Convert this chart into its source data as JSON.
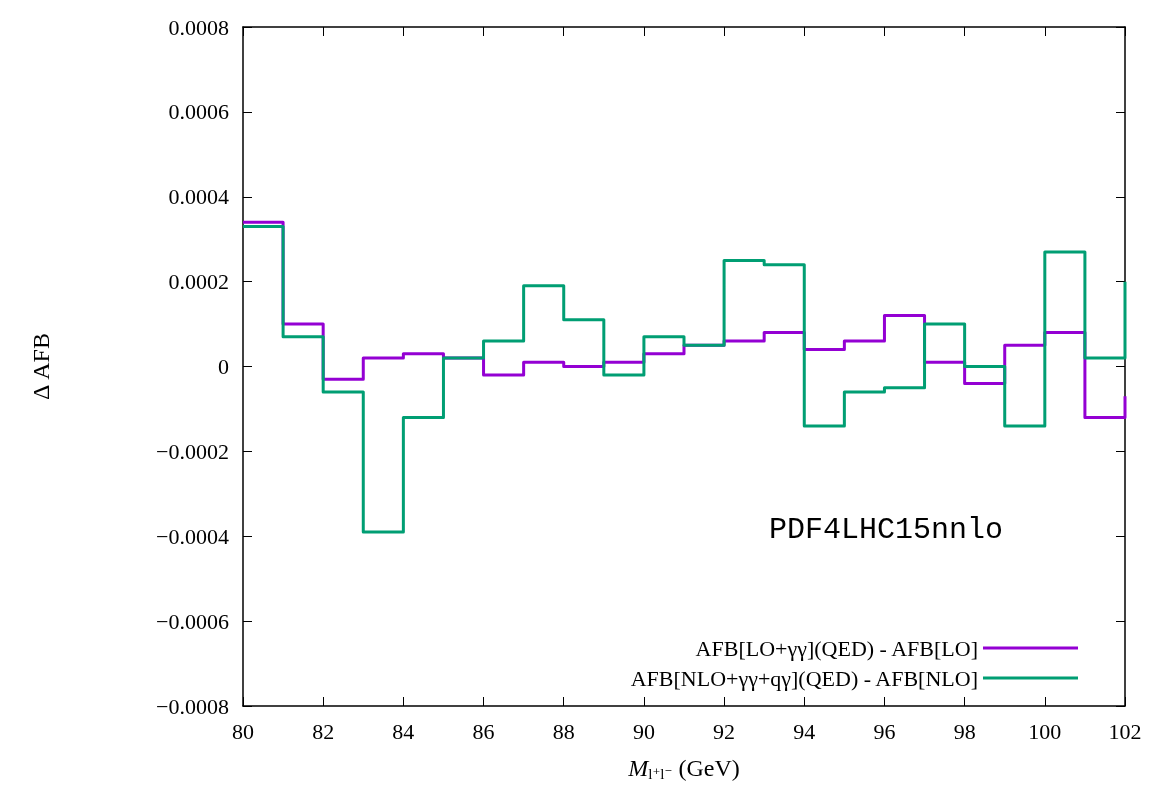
{
  "chart_data": {
    "type": "step",
    "xlabel": "M$_{l⁺l⁻}$ (GeV)",
    "ylabel": "Δ AFB",
    "annotations": [
      "PDF4LHC15nnlo"
    ],
    "x": [
      80,
      81,
      82,
      83,
      84,
      85,
      86,
      87,
      88,
      89,
      90,
      91,
      92,
      93,
      94,
      95,
      96,
      97,
      98,
      99,
      100,
      101,
      102
    ],
    "series": [
      {
        "name": "AFB[LO+γγ](QED) - AFB[LO]",
        "color": "#9400d3",
        "values": [
          0.00034,
          0.0001,
          -3e-05,
          2e-05,
          3e-05,
          2e-05,
          -2e-05,
          1e-05,
          0,
          1e-05,
          3e-05,
          5e-05,
          6e-05,
          8e-05,
          4e-05,
          6e-05,
          0.00012,
          1e-05,
          -4e-05,
          5e-05,
          8e-05,
          -0.00012,
          -7e-05
        ]
      },
      {
        "name": "AFB[NLO+γγ+qγ](QED) - AFB[NLO]",
        "color": "#009e73",
        "values": [
          0.00033,
          7e-05,
          -6e-05,
          -0.00039,
          -0.00012,
          2e-05,
          6e-05,
          0.00019,
          0.00011,
          -2e-05,
          7e-05,
          5e-05,
          0.00025,
          0.00024,
          -0.00014,
          -6e-05,
          -5e-05,
          0.0001,
          0,
          -0.00014,
          0.00027,
          2e-05,
          0.0002
        ]
      }
    ],
    "xlim": [
      80,
      102
    ],
    "xticks": [
      80,
      82,
      84,
      86,
      88,
      90,
      92,
      94,
      96,
      98,
      100,
      102
    ],
    "ylim": [
      -0.0008,
      0.0008
    ],
    "yticks": [
      {
        "value": -0.0008,
        "label": "−0.0008"
      },
      {
        "value": -0.0006,
        "label": "−0.0006"
      },
      {
        "value": -0.0004,
        "label": "−0.0004"
      },
      {
        "value": -0.0002,
        "label": "−0.0002"
      },
      0,
      0.0002,
      0.0004,
      0.0006,
      0.0008
    ],
    "grid": false,
    "legend": "bottom right",
    "line_style": "solid",
    "marker": "none"
  }
}
